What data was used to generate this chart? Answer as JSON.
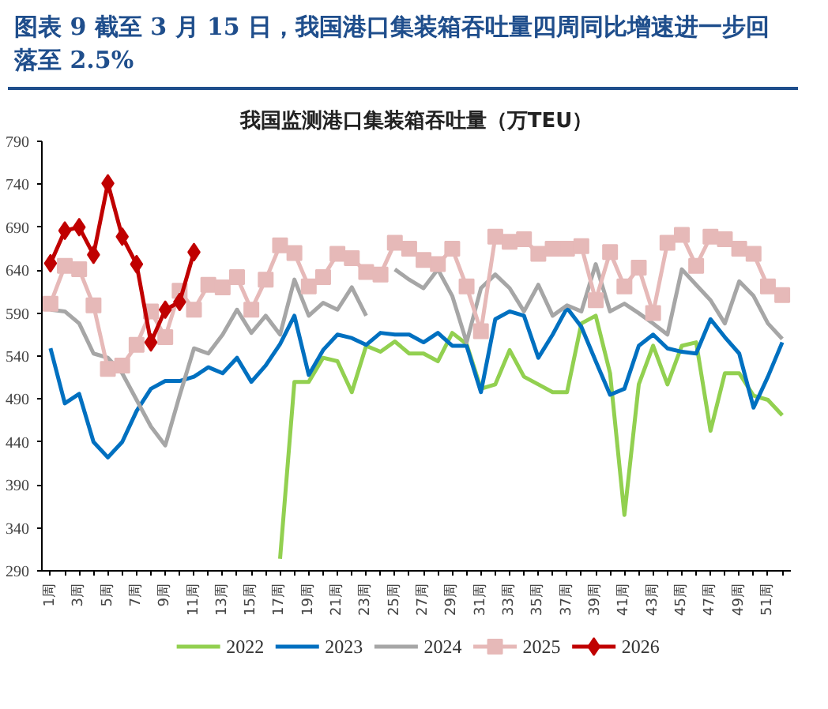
{
  "chart_data": {
    "type": "line",
    "title": "图表 9   截至 3 月 15 日，我国港口集装箱吞吐量四周同比增速进一步回落至 2.5%",
    "subtitle": "我国监测港口集装箱吞吐量（万TEU）",
    "categories": [
      "1周",
      null,
      "3周",
      null,
      "5周",
      null,
      "7周",
      null,
      "9周",
      null,
      "11周",
      null,
      "13周",
      null,
      "15周",
      null,
      "17周",
      null,
      "19周",
      null,
      "21周",
      null,
      "23周",
      null,
      "25周",
      null,
      "27周",
      null,
      "29周",
      null,
      "31周",
      null,
      "33周",
      null,
      "35周",
      null,
      "37周",
      null,
      "39周",
      null,
      "41周",
      null,
      "43周",
      null,
      "45周",
      null,
      "47周",
      null,
      "49周",
      null,
      "51周",
      null
    ],
    "ylim": [
      290,
      790
    ],
    "yticks": [
      290,
      340,
      390,
      440,
      490,
      540,
      590,
      640,
      690,
      740,
      790
    ],
    "grid": false,
    "legend": "bottom",
    "series": [
      {
        "name": "2022",
        "color": "#92d050",
        "marker": "none",
        "values": [
          null,
          null,
          null,
          null,
          null,
          null,
          null,
          null,
          null,
          null,
          null,
          null,
          null,
          null,
          null,
          null,
          304,
          510,
          510,
          538,
          534,
          498,
          552,
          545,
          557,
          543,
          543,
          534,
          567,
          554,
          502,
          507,
          547,
          516,
          507,
          498,
          498,
          578,
          587,
          520,
          355,
          507,
          552,
          507,
          552,
          556,
          453,
          520,
          520,
          494,
          489,
          471
        ]
      },
      {
        "name": "2023",
        "color": "#0070c0",
        "marker": "none",
        "values": [
          549,
          485,
          496,
          440,
          422,
          440,
          476,
          502,
          511,
          511,
          516,
          527,
          520,
          538,
          510,
          529,
          554,
          587,
          518,
          547,
          565,
          561,
          553,
          567,
          565,
          565,
          556,
          567,
          552,
          552,
          498,
          583,
          592,
          587,
          538,
          565,
          596,
          574,
          534,
          495,
          502,
          552,
          565,
          549,
          545,
          543,
          583,
          562,
          543,
          480,
          516,
          556
        ]
      },
      {
        "name": "2024",
        "color": "#a6a6a6",
        "marker": "none",
        "values": [
          594,
          592,
          578,
          543,
          538,
          520,
          489,
          458,
          436,
          494,
          549,
          543,
          565,
          594,
          567,
          587,
          565,
          629,
          587,
          602,
          594,
          620,
          587,
          null,
          641,
          629,
          619,
          641,
          610,
          556,
          619,
          635,
          619,
          592,
          623,
          587,
          599,
          592,
          647,
          592,
          601,
          590,
          578,
          565,
          641,
          623,
          605,
          578,
          627,
          610,
          578,
          560
        ]
      },
      {
        "name": "2025",
        "color": "#e6b9b8",
        "marker": "square",
        "values": [
          601,
          645,
          641,
          599,
          525,
          529,
          553,
          592,
          562,
          616,
          594,
          623,
          620,
          632,
          594,
          629,
          669,
          660,
          621,
          632,
          659,
          654,
          638,
          635,
          672,
          665,
          652,
          647,
          665,
          621,
          569,
          679,
          673,
          676,
          659,
          665,
          665,
          668,
          605,
          661,
          621,
          643,
          590,
          672,
          681,
          645,
          679,
          676,
          665,
          659,
          621,
          611
        ]
      },
      {
        "name": "2026",
        "color": "#c00000",
        "marker": "diamond",
        "values": [
          648,
          686,
          690,
          658,
          741,
          679,
          647,
          556,
          594,
          603,
          661,
          null,
          null,
          null,
          null,
          null,
          null,
          null,
          null,
          null,
          null,
          null,
          null,
          null,
          null,
          null,
          null,
          null,
          null,
          null,
          null,
          null,
          null,
          null,
          null,
          null,
          null,
          null,
          null,
          null,
          null,
          null,
          null,
          null,
          null,
          null,
          null,
          null,
          null,
          null,
          null,
          null
        ]
      }
    ]
  }
}
